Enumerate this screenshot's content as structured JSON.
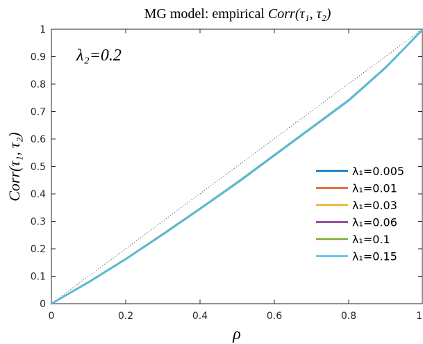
{
  "chart_data": {
    "type": "line",
    "title": "MG model: empirical Corr(τ₁, τ₂)",
    "title_prefix": "MG model: empirical ",
    "title_math": "Corr(τ₁, τ₂)",
    "xlabel": "ρ",
    "ylabel": "Corr(τ₁, τ₂)",
    "annotation": "λ₂=0.2",
    "xlim": [
      0,
      1
    ],
    "ylim": [
      0,
      1
    ],
    "x_ticks": [
      "0",
      "0.2",
      "0.4",
      "0.6",
      "0.8",
      "1"
    ],
    "y_ticks": [
      "0",
      "0.1",
      "0.2",
      "0.3",
      "0.4",
      "0.5",
      "0.6",
      "0.7",
      "0.8",
      "0.9",
      "1"
    ],
    "grid": false,
    "legend_position": "lower-right",
    "reference_line": {
      "style": "dotted",
      "color": "#555555",
      "x": [
        0,
        1
      ],
      "y": [
        0,
        1
      ]
    },
    "x": [
      0,
      0.1,
      0.2,
      0.3,
      0.4,
      0.5,
      0.6,
      0.7,
      0.8,
      0.9,
      1.0
    ],
    "series": [
      {
        "name": "λ₁=0.005",
        "color": "#0072BD",
        "values": [
          0,
          0.078,
          0.162,
          0.252,
          0.345,
          0.44,
          0.54,
          0.64,
          0.74,
          0.86,
          1.0
        ]
      },
      {
        "name": "λ₁=0.01",
        "color": "#D95319",
        "values": [
          0,
          0.079,
          0.163,
          0.253,
          0.346,
          0.441,
          0.541,
          0.641,
          0.741,
          0.861,
          1.0
        ]
      },
      {
        "name": "λ₁=0.03",
        "color": "#EDB120",
        "values": [
          0,
          0.079,
          0.163,
          0.254,
          0.347,
          0.442,
          0.542,
          0.642,
          0.742,
          0.862,
          1.0
        ]
      },
      {
        "name": "λ₁=0.06",
        "color": "#7E2F8E",
        "values": [
          0,
          0.078,
          0.162,
          0.253,
          0.346,
          0.441,
          0.541,
          0.641,
          0.741,
          0.861,
          1.0
        ]
      },
      {
        "name": "λ₁=0.1",
        "color": "#77AC30",
        "values": [
          0,
          0.079,
          0.163,
          0.253,
          0.346,
          0.442,
          0.542,
          0.642,
          0.742,
          0.861,
          1.0
        ]
      },
      {
        "name": "λ₁=0.15",
        "color": "#4DBEEE",
        "values": [
          0,
          0.078,
          0.162,
          0.252,
          0.345,
          0.441,
          0.541,
          0.641,
          0.741,
          0.86,
          1.0
        ]
      }
    ]
  }
}
